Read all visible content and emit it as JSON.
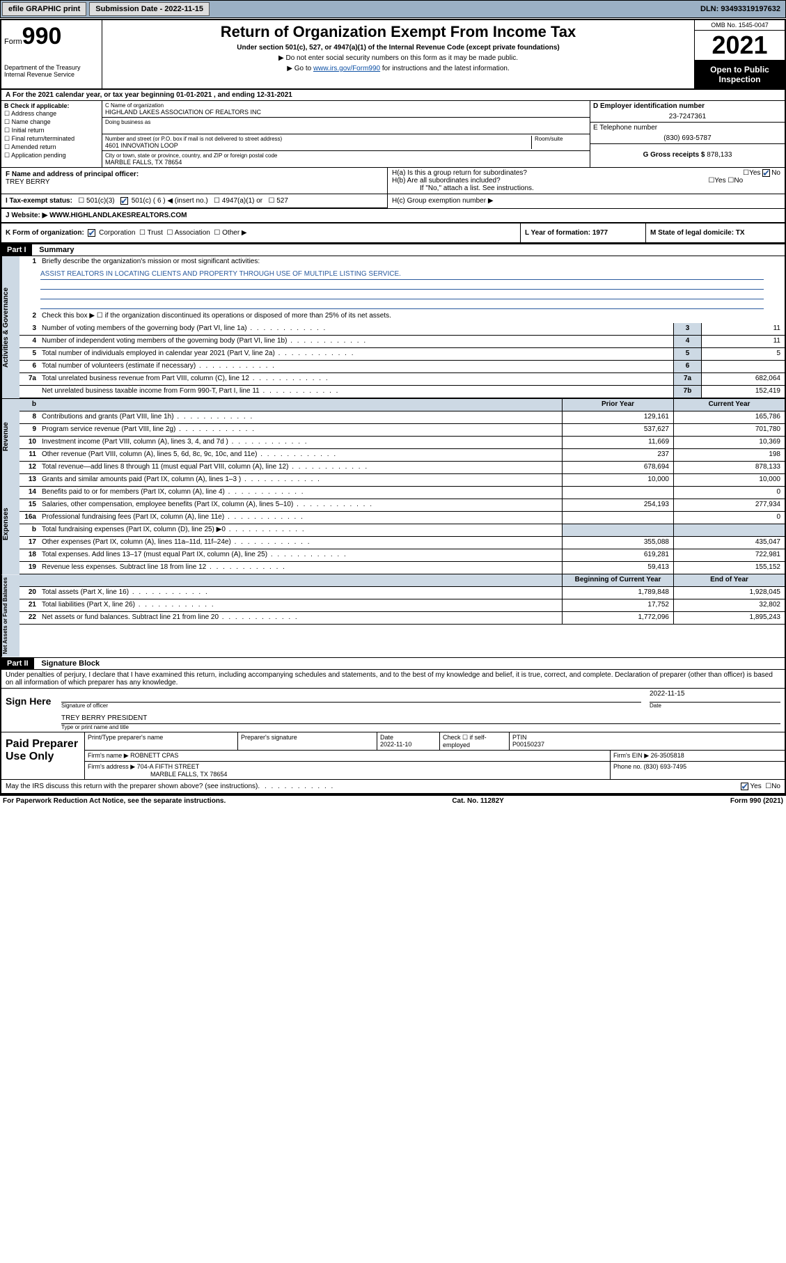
{
  "topbar": {
    "btn1": "efile GRAPHIC print",
    "submission_label": "Submission Date - 2022-11-15",
    "dln": "DLN: 93493319197632"
  },
  "header": {
    "form_prefix": "Form",
    "form_num": "990",
    "dept": "Department of the Treasury",
    "irs": "Internal Revenue Service",
    "title": "Return of Organization Exempt From Income Tax",
    "sub": "Under section 501(c), 527, or 4947(a)(1) of the Internal Revenue Code (except private foundations)",
    "note1": "▶ Do not enter social security numbers on this form as it may be made public.",
    "note2_pre": "▶ Go to ",
    "note2_link": "www.irs.gov/Form990",
    "note2_post": " for instructions and the latest information.",
    "omb": "OMB No. 1545-0047",
    "year": "2021",
    "inspect": "Open to Public Inspection"
  },
  "sectionA": {
    "text": "For the 2021 calendar year, or tax year beginning 01-01-2021    , and ending 12-31-2021"
  },
  "sectionB": {
    "label": "B Check if applicable:",
    "items": [
      "Address change",
      "Name change",
      "Initial return",
      "Final return/terminated",
      "Amended return",
      "Application pending"
    ]
  },
  "sectionC": {
    "name_label": "C Name of organization",
    "name": "HIGHLAND LAKES ASSOCIATION OF REALTORS INC",
    "dba_label": "Doing business as",
    "street_label": "Number and street (or P.O. box if mail is not delivered to street address)",
    "street": "4601 INNOVATION LOOP",
    "room_label": "Room/suite",
    "city_label": "City or town, state or province, country, and ZIP or foreign postal code",
    "city": "MARBLE FALLS, TX  78654"
  },
  "sectionD": {
    "label": "D Employer identification number",
    "value": "23-7247361"
  },
  "sectionE": {
    "label": "E Telephone number",
    "value": "(830) 693-5787"
  },
  "sectionG": {
    "label": "G Gross receipts $",
    "value": "878,133"
  },
  "sectionF": {
    "label": "F  Name and address of principal officer:",
    "name": "TREY BERRY"
  },
  "sectionH": {
    "ha": "H(a)  Is this a group return for subordinates?",
    "hb": "H(b)  Are all subordinates included?",
    "hb_note": "If \"No,\" attach a list. See instructions.",
    "hc": "H(c)  Group exemption number ▶"
  },
  "sectionI": {
    "label": "I    Tax-exempt status:",
    "opts": [
      "501(c)(3)",
      "501(c) ( 6 ) ◀ (insert no.)",
      "4947(a)(1) or",
      "527"
    ]
  },
  "sectionJ": {
    "label": "J    Website: ▶",
    "value": "WWW.HIGHLANDLAKESREALTORS.COM"
  },
  "sectionK": {
    "label": "K Form of organization:",
    "opts": [
      "Corporation",
      "Trust",
      "Association",
      "Other ▶"
    ]
  },
  "sectionL": {
    "label": "L Year of formation: 1977"
  },
  "sectionM": {
    "label": "M State of legal domicile: TX"
  },
  "part1": {
    "header": "Part I",
    "title": "Summary",
    "line1": "Briefly describe the organization's mission or most significant activities:",
    "mission": "ASSIST REALTORS IN LOCATING CLIENTS AND PROPERTY THROUGH USE OF MULTIPLE LISTING SERVICE.",
    "line2": "Check this box ▶ ☐  if the organization discontinued its operations or disposed of more than 25% of its net assets.",
    "side_gov": "Activities & Governance",
    "side_rev": "Revenue",
    "side_exp": "Expenses",
    "side_net": "Net Assets or Fund Balances",
    "col_prior": "Prior Year",
    "col_current": "Current Year",
    "col_begin": "Beginning of Current Year",
    "col_end": "End of Year",
    "rows_gov": [
      {
        "n": "3",
        "t": "Number of voting members of the governing body (Part VI, line 1a)",
        "box": "3",
        "v": "11"
      },
      {
        "n": "4",
        "t": "Number of independent voting members of the governing body (Part VI, line 1b)",
        "box": "4",
        "v": "11"
      },
      {
        "n": "5",
        "t": "Total number of individuals employed in calendar year 2021 (Part V, line 2a)",
        "box": "5",
        "v": "5"
      },
      {
        "n": "6",
        "t": "Total number of volunteers (estimate if necessary)",
        "box": "6",
        "v": ""
      },
      {
        "n": "7a",
        "t": "Total unrelated business revenue from Part VIII, column (C), line 12",
        "box": "7a",
        "v": "682,064"
      },
      {
        "n": "",
        "t": "Net unrelated business taxable income from Form 990-T, Part I, line 11",
        "box": "7b",
        "v": "152,419"
      }
    ],
    "rows_rev": [
      {
        "n": "8",
        "t": "Contributions and grants (Part VIII, line 1h)",
        "p": "129,161",
        "c": "165,786"
      },
      {
        "n": "9",
        "t": "Program service revenue (Part VIII, line 2g)",
        "p": "537,627",
        "c": "701,780"
      },
      {
        "n": "10",
        "t": "Investment income (Part VIII, column (A), lines 3, 4, and 7d )",
        "p": "11,669",
        "c": "10,369"
      },
      {
        "n": "11",
        "t": "Other revenue (Part VIII, column (A), lines 5, 6d, 8c, 9c, 10c, and 11e)",
        "p": "237",
        "c": "198"
      },
      {
        "n": "12",
        "t": "Total revenue—add lines 8 through 11 (must equal Part VIII, column (A), line 12)",
        "p": "678,694",
        "c": "878,133"
      }
    ],
    "rows_exp": [
      {
        "n": "13",
        "t": "Grants and similar amounts paid (Part IX, column (A), lines 1–3 )",
        "p": "10,000",
        "c": "10,000"
      },
      {
        "n": "14",
        "t": "Benefits paid to or for members (Part IX, column (A), line 4)",
        "p": "",
        "c": "0"
      },
      {
        "n": "15",
        "t": "Salaries, other compensation, employee benefits (Part IX, column (A), lines 5–10)",
        "p": "254,193",
        "c": "277,934"
      },
      {
        "n": "16a",
        "t": "Professional fundraising fees (Part IX, column (A), line 11e)",
        "p": "",
        "c": "0"
      },
      {
        "n": "b",
        "t": "Total fundraising expenses (Part IX, column (D), line 25) ▶0",
        "p": "",
        "c": "",
        "grey": true
      },
      {
        "n": "17",
        "t": "Other expenses (Part IX, column (A), lines 11a–11d, 11f–24e)",
        "p": "355,088",
        "c": "435,047"
      },
      {
        "n": "18",
        "t": "Total expenses. Add lines 13–17 (must equal Part IX, column (A), line 25)",
        "p": "619,281",
        "c": "722,981"
      },
      {
        "n": "19",
        "t": "Revenue less expenses. Subtract line 18 from line 12",
        "p": "59,413",
        "c": "155,152"
      }
    ],
    "rows_net": [
      {
        "n": "20",
        "t": "Total assets (Part X, line 16)",
        "p": "1,789,848",
        "c": "1,928,045"
      },
      {
        "n": "21",
        "t": "Total liabilities (Part X, line 26)",
        "p": "17,752",
        "c": "32,802"
      },
      {
        "n": "22",
        "t": "Net assets or fund balances. Subtract line 21 from line 20",
        "p": "1,772,096",
        "c": "1,895,243"
      }
    ]
  },
  "part2": {
    "header": "Part II",
    "title": "Signature Block",
    "declaration": "Under penalties of perjury, I declare that I have examined this return, including accompanying schedules and statements, and to the best of my knowledge and belief, it is true, correct, and complete. Declaration of preparer (other than officer) is based on all information of which preparer has any knowledge.",
    "sign_here": "Sign Here",
    "sig_officer": "Signature of officer",
    "sig_date": "Date",
    "sig_date_val": "2022-11-15",
    "sig_name": "TREY BERRY  PRESIDENT",
    "sig_name_label": "Type or print name and title",
    "paid": "Paid Preparer Use Only",
    "prep_name_label": "Print/Type preparer's name",
    "prep_sig_label": "Preparer's signature",
    "prep_date_label": "Date",
    "prep_date": "2022-11-10",
    "prep_check": "Check ☐ if self-employed",
    "ptin_label": "PTIN",
    "ptin": "P00150237",
    "firm_name_label": "Firm's name     ▶",
    "firm_name": "ROBNETT CPAS",
    "firm_ein_label": "Firm's EIN ▶",
    "firm_ein": "26-3505818",
    "firm_addr_label": "Firm's address ▶",
    "firm_addr": "704-A FIFTH STREET",
    "firm_city": "MARBLE FALLS, TX  78654",
    "phone_label": "Phone no.",
    "phone": "(830) 693-7495",
    "may_irs": "May the IRS discuss this return with the preparer shown above? (see instructions)"
  },
  "footer": {
    "left": "For Paperwork Reduction Act Notice, see the separate instructions.",
    "mid": "Cat. No. 11282Y",
    "right": "Form 990 (2021)"
  }
}
